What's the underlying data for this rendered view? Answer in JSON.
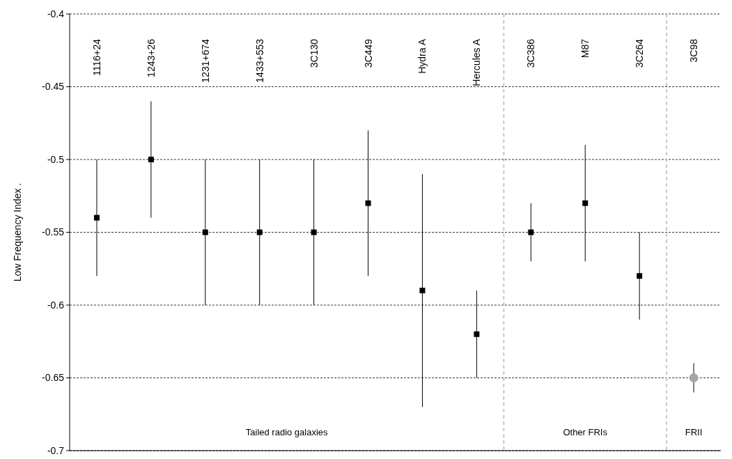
{
  "chart_data": {
    "type": "scatter",
    "ylabel": "Low Frequency Index  .",
    "categories": [
      "1116+24",
      "1243+26",
      "1231+674",
      "1433+553",
      "3C130",
      "3C449",
      "Hydra A",
      "Hercules A",
      "3C386",
      "M87",
      "3C264",
      "3C98"
    ],
    "series": [
      {
        "color": "#000000",
        "marker": "square",
        "values": [
          -0.54,
          -0.5,
          -0.55,
          -0.55,
          -0.55,
          -0.53,
          -0.59,
          -0.62,
          -0.55,
          -0.53,
          -0.58,
          null
        ],
        "errors": [
          [
            -0.58,
            -0.5
          ],
          [
            -0.54,
            -0.46
          ],
          [
            -0.6,
            -0.5
          ],
          [
            -0.6,
            -0.5
          ],
          [
            -0.6,
            -0.5
          ],
          [
            -0.58,
            -0.48
          ],
          [
            -0.67,
            -0.51
          ],
          [
            -0.65,
            -0.59
          ],
          [
            -0.57,
            -0.53
          ],
          [
            -0.57,
            -0.49
          ],
          [
            -0.61,
            -0.55
          ],
          null
        ]
      },
      {
        "color": "#a6a6a6",
        "marker": "circle",
        "values": [
          null,
          null,
          null,
          null,
          null,
          null,
          null,
          null,
          null,
          null,
          null,
          -0.65
        ],
        "errors": [
          null,
          null,
          null,
          null,
          null,
          null,
          null,
          null,
          null,
          null,
          null,
          [
            -0.66,
            -0.64
          ]
        ]
      }
    ],
    "ylim": [
      -0.7,
      -0.4
    ],
    "yticks": [
      -0.7,
      -0.65,
      -0.6,
      -0.55,
      -0.5,
      -0.45,
      -0.4
    ],
    "grid": "y",
    "annotations": [
      "Tailed radio galaxies",
      "Other FRIs",
      "FRII"
    ]
  }
}
